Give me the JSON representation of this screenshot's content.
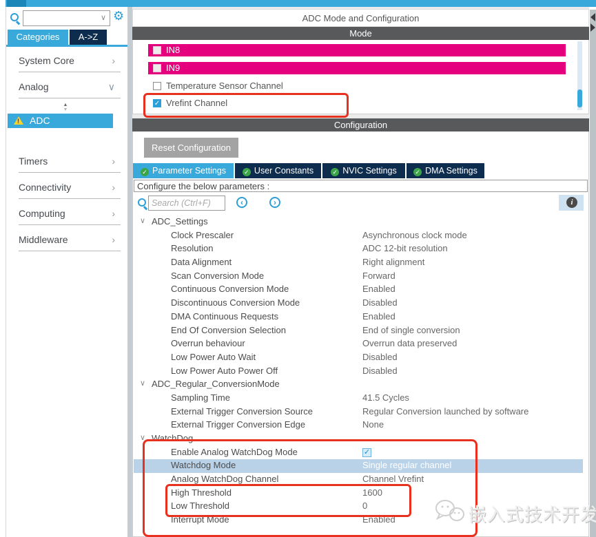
{
  "colors": {
    "accent_blue": "#39a9dc",
    "navy": "#0d2c4e",
    "bar_gray": "#58595b",
    "magenta": "#e5007d",
    "highlight_red": "#e8301f",
    "selected_row_blue": "#b9d2e8",
    "warning_yellow": "#f6d32d",
    "check_green": "#3ba548"
  },
  "icons": {
    "gear": "⚙",
    "dropdown": "∨",
    "chevron_right": "›",
    "chevron_down": "∨",
    "check": "✓",
    "info": "i",
    "prev": "‹",
    "next": "›",
    "warning": "!",
    "spinner_up": "▲",
    "spinner_down": "▼"
  },
  "sidebar": {
    "tabs": [
      {
        "label": "Categories",
        "active": true
      },
      {
        "label": "A->Z",
        "active": false
      }
    ],
    "top_groups": [
      {
        "label": "System Core",
        "chevron": "right"
      },
      {
        "label": "Analog",
        "chevron": "down"
      }
    ],
    "selected_item": {
      "label": "ADC",
      "warning": true
    },
    "bottom_groups": [
      {
        "label": "Timers",
        "chevron": "right"
      },
      {
        "label": "Connectivity",
        "chevron": "right"
      },
      {
        "label": "Computing",
        "chevron": "right"
      },
      {
        "label": "Middleware",
        "chevron": "right"
      }
    ]
  },
  "main": {
    "title": "ADC Mode and Configuration",
    "mode": {
      "header": "Mode",
      "channels": [
        {
          "label": "IN8",
          "checked": false,
          "pink": true
        },
        {
          "label": "IN9",
          "checked": false,
          "pink": true
        },
        {
          "label": "Temperature Sensor Channel",
          "checked": false,
          "pink": false
        },
        {
          "label": "Vrefint Channel",
          "checked": true,
          "pink": false
        }
      ]
    },
    "configuration": {
      "header": "Configuration",
      "reset_button": "Reset Configuration",
      "tabs": [
        {
          "label": "Parameter Settings",
          "active": true
        },
        {
          "label": "User Constants",
          "active": false
        },
        {
          "label": "NVIC Settings",
          "active": false
        },
        {
          "label": "DMA Settings",
          "active": false
        }
      ],
      "hint": "Configure the below parameters :",
      "search_placeholder": "Search (Ctrl+F)",
      "tree": [
        {
          "kind": "group",
          "label": "ADC_Settings"
        },
        {
          "kind": "param",
          "label": "Clock Prescaler",
          "value": "Asynchronous clock mode"
        },
        {
          "kind": "param",
          "label": "Resolution",
          "value": "ADC 12-bit resolution"
        },
        {
          "kind": "param",
          "label": "Data Alignment",
          "value": "Right alignment"
        },
        {
          "kind": "param",
          "label": "Scan Conversion Mode",
          "value": "Forward"
        },
        {
          "kind": "param",
          "label": "Continuous Conversion Mode",
          "value": "Enabled"
        },
        {
          "kind": "param",
          "label": "Discontinuous Conversion Mode",
          "value": "Disabled"
        },
        {
          "kind": "param",
          "label": "DMA Continuous Requests",
          "value": "Enabled"
        },
        {
          "kind": "param",
          "label": "End Of Conversion Selection",
          "value": "End of single conversion"
        },
        {
          "kind": "param",
          "label": "Overrun behaviour",
          "value": "Overrun data preserved"
        },
        {
          "kind": "param",
          "label": "Low Power Auto Wait",
          "value": "Disabled"
        },
        {
          "kind": "param",
          "label": "Low Power Auto Power Off",
          "value": "Disabled"
        },
        {
          "kind": "group",
          "label": "ADC_Regular_ConversionMode"
        },
        {
          "kind": "param",
          "label": "Sampling Time",
          "value": "41.5 Cycles"
        },
        {
          "kind": "param",
          "label": "External Trigger Conversion Source",
          "value": "Regular Conversion launched by software"
        },
        {
          "kind": "param",
          "label": "External Trigger Conversion Edge",
          "value": "None"
        },
        {
          "kind": "group",
          "label": "WatchDog"
        },
        {
          "kind": "param",
          "label": "Enable Analog WatchDog Mode",
          "value_type": "checkbox",
          "checked": true
        },
        {
          "kind": "param",
          "label": "Watchdog Mode",
          "value": "Single regular channel",
          "selected": true
        },
        {
          "kind": "param",
          "label": "Analog WatchDog Channel",
          "value": "Channel Vrefint"
        },
        {
          "kind": "param",
          "label": "High Threshold",
          "value": "1600"
        },
        {
          "kind": "param",
          "label": "Low Threshold",
          "value": "0"
        },
        {
          "kind": "param",
          "label": "Interrupt Mode",
          "value": "Enabled"
        }
      ]
    }
  },
  "watermark": {
    "text": "嵌入式技术开发"
  }
}
